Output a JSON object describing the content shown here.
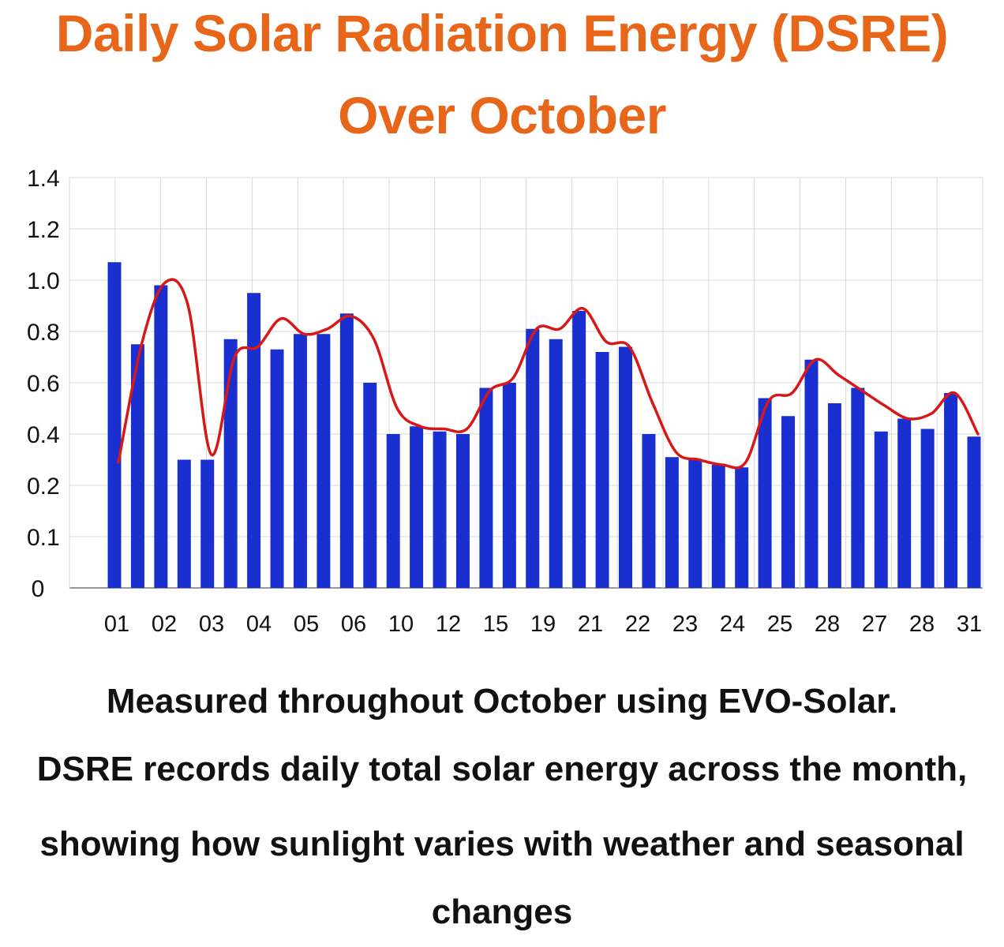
{
  "title_lines": [
    "Daily Solar Radiation Energy (DSRE)",
    "Over October"
  ],
  "caption_lines": [
    "Measured throughout October using EVO-Solar.",
    "DSRE records daily total solar energy across the month,",
    "showing how sunlight varies with weather and seasonal",
    "changes"
  ],
  "colors": {
    "title": "#e8661a",
    "bars": "#1a2fd0",
    "trend_line": "#d81818",
    "grid": "#d9d9d9",
    "text": "#111111"
  },
  "chart_data": {
    "type": "bar",
    "title": "Daily Solar Radiation Energy (DSRE) Over October",
    "xlabel": "",
    "ylabel": "",
    "ylim": [
      0,
      1.4
    ],
    "y_tick_labels": [
      "0",
      "0.1",
      "0.2",
      "0.4",
      "0.6",
      "0.8",
      "1.0",
      "1.2",
      "1.4"
    ],
    "x_tick_labels": [
      "01",
      "02",
      "03",
      "04",
      "05",
      "06",
      "10",
      "12",
      "15",
      "19",
      "21",
      "22",
      "23",
      "24",
      "25",
      "28",
      "27",
      "28",
      "31"
    ],
    "grid": true,
    "legend": "none",
    "series": [
      {
        "type": "bar",
        "values": [
          1.07,
          0.75,
          0.98,
          0.3,
          0.3,
          0.77,
          0.95,
          0.73,
          0.79,
          0.79,
          0.87,
          0.6,
          0.4,
          0.43,
          0.41,
          0.4,
          0.58,
          0.6,
          0.81,
          0.77,
          0.88,
          0.72,
          0.74,
          0.4,
          0.31,
          0.3,
          0.28,
          0.27,
          0.54,
          0.47,
          0.69,
          0.52,
          0.58,
          0.41,
          0.46,
          0.42,
          0.56,
          0.39
        ]
      },
      {
        "type": "line",
        "values": [
          0.29,
          0.75,
          0.99,
          0.9,
          0.32,
          0.7,
          0.74,
          0.85,
          0.79,
          0.81,
          0.86,
          0.77,
          0.5,
          0.43,
          0.42,
          0.42,
          0.57,
          0.62,
          0.81,
          0.81,
          0.89,
          0.76,
          0.74,
          0.52,
          0.33,
          0.3,
          0.28,
          0.29,
          0.53,
          0.56,
          0.69,
          0.63,
          0.57,
          0.51,
          0.46,
          0.48,
          0.56,
          0.4
        ]
      }
    ]
  }
}
